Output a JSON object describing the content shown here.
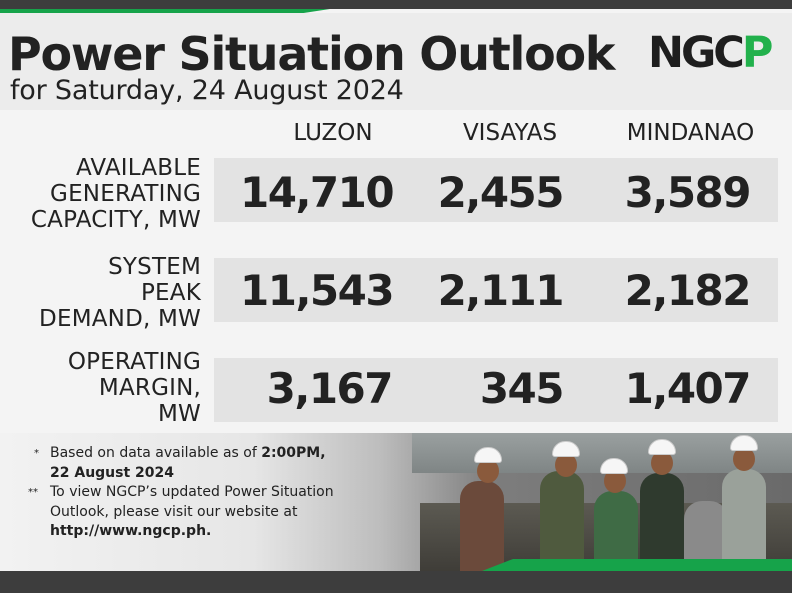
{
  "header": {
    "title": "Power Situation Outlook",
    "subtitle": "for Saturday, 24 August 2024"
  },
  "logo": {
    "text_main": "NGC",
    "text_accent": "P"
  },
  "columns": [
    "LUZON",
    "VISAYAS",
    "MINDANAO"
  ],
  "rows": [
    {
      "label_lines": [
        "AVAILABLE",
        "GENERATING",
        "CAPACITY, MW"
      ],
      "values": [
        "14,710",
        "2,455",
        "3,589"
      ]
    },
    {
      "label_lines": [
        "SYSTEM",
        "PEAK",
        "DEMAND, MW"
      ],
      "values": [
        "11,543",
        "2,111",
        "2,182"
      ]
    },
    {
      "label_lines": [
        "OPERATING",
        "MARGIN,",
        "MW"
      ],
      "values": [
        "3,167",
        "345",
        "1,407"
      ]
    }
  ],
  "notes": {
    "note1_marker": "*",
    "note1_text": "Based on data available as of",
    "note1_bold_time": "2:00PM,",
    "note1_bold_date": "22 August 2024",
    "note2_marker": "**",
    "note2_line1": "To view NGCP’s updated Power Situation",
    "note2_line2": "Outlook, please visit our website at",
    "note2_url": "http://www.ngcp.ph."
  },
  "colors": {
    "accent": "#22b14c",
    "dark": "#3d3d3d"
  }
}
